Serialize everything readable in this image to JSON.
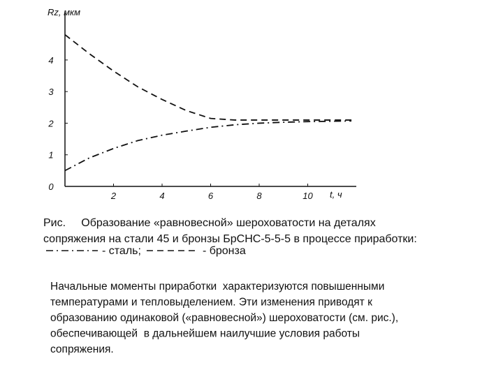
{
  "chart_data": {
    "type": "line",
    "xlabel": "t, ч",
    "ylabel": "Rz, мкм",
    "xlim": [
      0,
      12
    ],
    "ylim": [
      0,
      5.5
    ],
    "xticks": [
      2,
      4,
      6,
      8,
      10
    ],
    "yticks": [
      0,
      1,
      2,
      3,
      4
    ],
    "x": [
      0,
      1,
      2,
      3,
      4,
      5,
      6,
      7,
      8,
      9,
      10,
      11.8
    ],
    "series": [
      {
        "name": "- сталь;",
        "color": "#111111",
        "line_style": "dashdot",
        "values": [
          0.5,
          0.9,
          1.2,
          1.45,
          1.62,
          1.75,
          1.87,
          1.95,
          2.0,
          2.03,
          2.05,
          2.07
        ]
      },
      {
        "name": "- бронза",
        "color": "#111111",
        "line_style": "dashed",
        "values": [
          4.8,
          4.2,
          3.65,
          3.15,
          2.75,
          2.4,
          2.15,
          2.1,
          2.1,
          2.1,
          2.1,
          2.1
        ]
      }
    ]
  },
  "caption": {
    "lines": [
      "Рис.     Образование «равновесной» шероховатости на деталях",
      "сопряжения на стали 45 и бронзы БрСНС-5-5-5 в процессе приработки:"
    ]
  },
  "body": {
    "lines": [
      "Начальные моменты приработки  характеризуются повышенными",
      "температурами и тепловыделением. Эти изменения приводят к",
      "образованию одинаковой («равновесной») шероховатости (см. рис.),",
      "обеспечивающей  в дальнейшем наилучшие условия работы",
      "сопряжения."
    ]
  }
}
